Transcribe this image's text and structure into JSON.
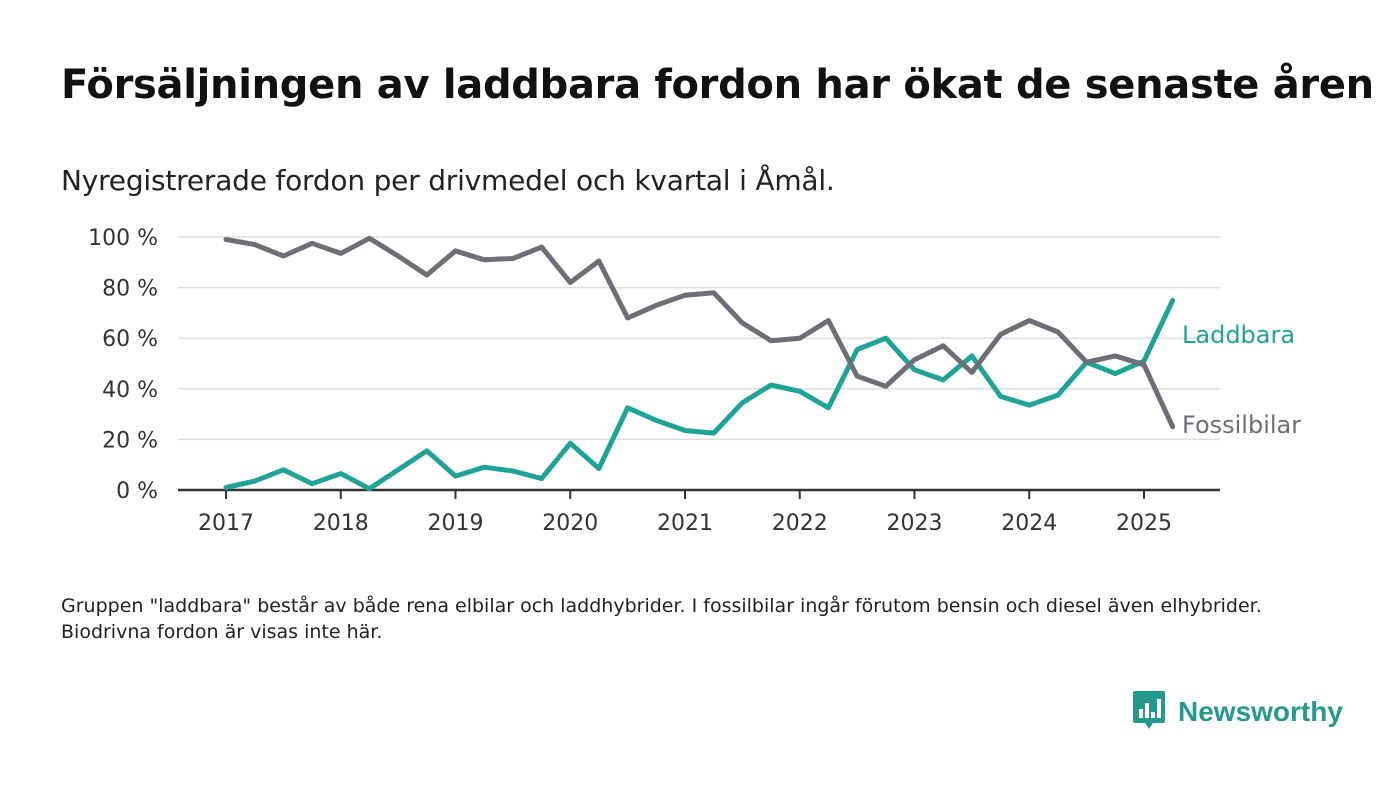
{
  "header": {
    "title": "Försäljningen av laddbara fordon har ökat de senaste åren",
    "subtitle": "Nyregistrerade fordon per drivmedel och kvartal i Åmål."
  },
  "footer": {
    "note": "Gruppen \"laddbara\" består av både rena elbilar och laddhybrider. I fossilbilar ingår förutom bensin och diesel även elhybrider. Biodrivna fordon är visas inte här.",
    "brand": "Newsworthy",
    "brand_icon": "newsworthy-logo-icon"
  },
  "colors": {
    "laddbara": "#1fa396",
    "fossil": "#6e6e76",
    "grid": "#dddddd",
    "axis": "#333333",
    "brand": "#24998e"
  },
  "chart_data": {
    "type": "line",
    "x_start": 2017,
    "x_step": 0.25,
    "xlim": [
      2017,
      2025.25
    ],
    "ylim": [
      0,
      100
    ],
    "y_ticks": [
      0,
      20,
      40,
      60,
      80,
      100
    ],
    "y_tick_labels": [
      "0 %",
      "20 %",
      "40 %",
      "60 %",
      "80 %",
      "100 %"
    ],
    "x_ticks": [
      2017,
      2018,
      2019,
      2020,
      2021,
      2022,
      2023,
      2024,
      2025
    ],
    "x_tick_labels": [
      "2017",
      "2018",
      "2019",
      "2020",
      "2021",
      "2022",
      "2023",
      "2024",
      "2025"
    ],
    "grid": true,
    "series": [
      {
        "name": "Laddbara",
        "color_key": "laddbara",
        "values": [
          1,
          3.5,
          8,
          2.5,
          6.5,
          0.5,
          8,
          15.5,
          5.5,
          9,
          7.5,
          4.5,
          18.5,
          8.5,
          32.5,
          27.5,
          23.5,
          22.5,
          34.5,
          41.5,
          39,
          32.5,
          55.5,
          60,
          47.5,
          43.5,
          53,
          37,
          33.5,
          37.5,
          50.5,
          46,
          51,
          75
        ]
      },
      {
        "name": "Fossilbilar",
        "color_key": "fossil",
        "values": [
          99,
          97,
          92.5,
          97.5,
          93.5,
          99.5,
          92.5,
          85,
          94.5,
          91,
          91.5,
          96,
          82,
          90.5,
          68,
          73,
          77,
          78,
          66,
          59,
          60,
          67,
          45,
          41,
          51.5,
          57,
          46.5,
          61.5,
          67,
          62.5,
          50.5,
          53,
          49.5,
          25
        ]
      }
    ]
  }
}
